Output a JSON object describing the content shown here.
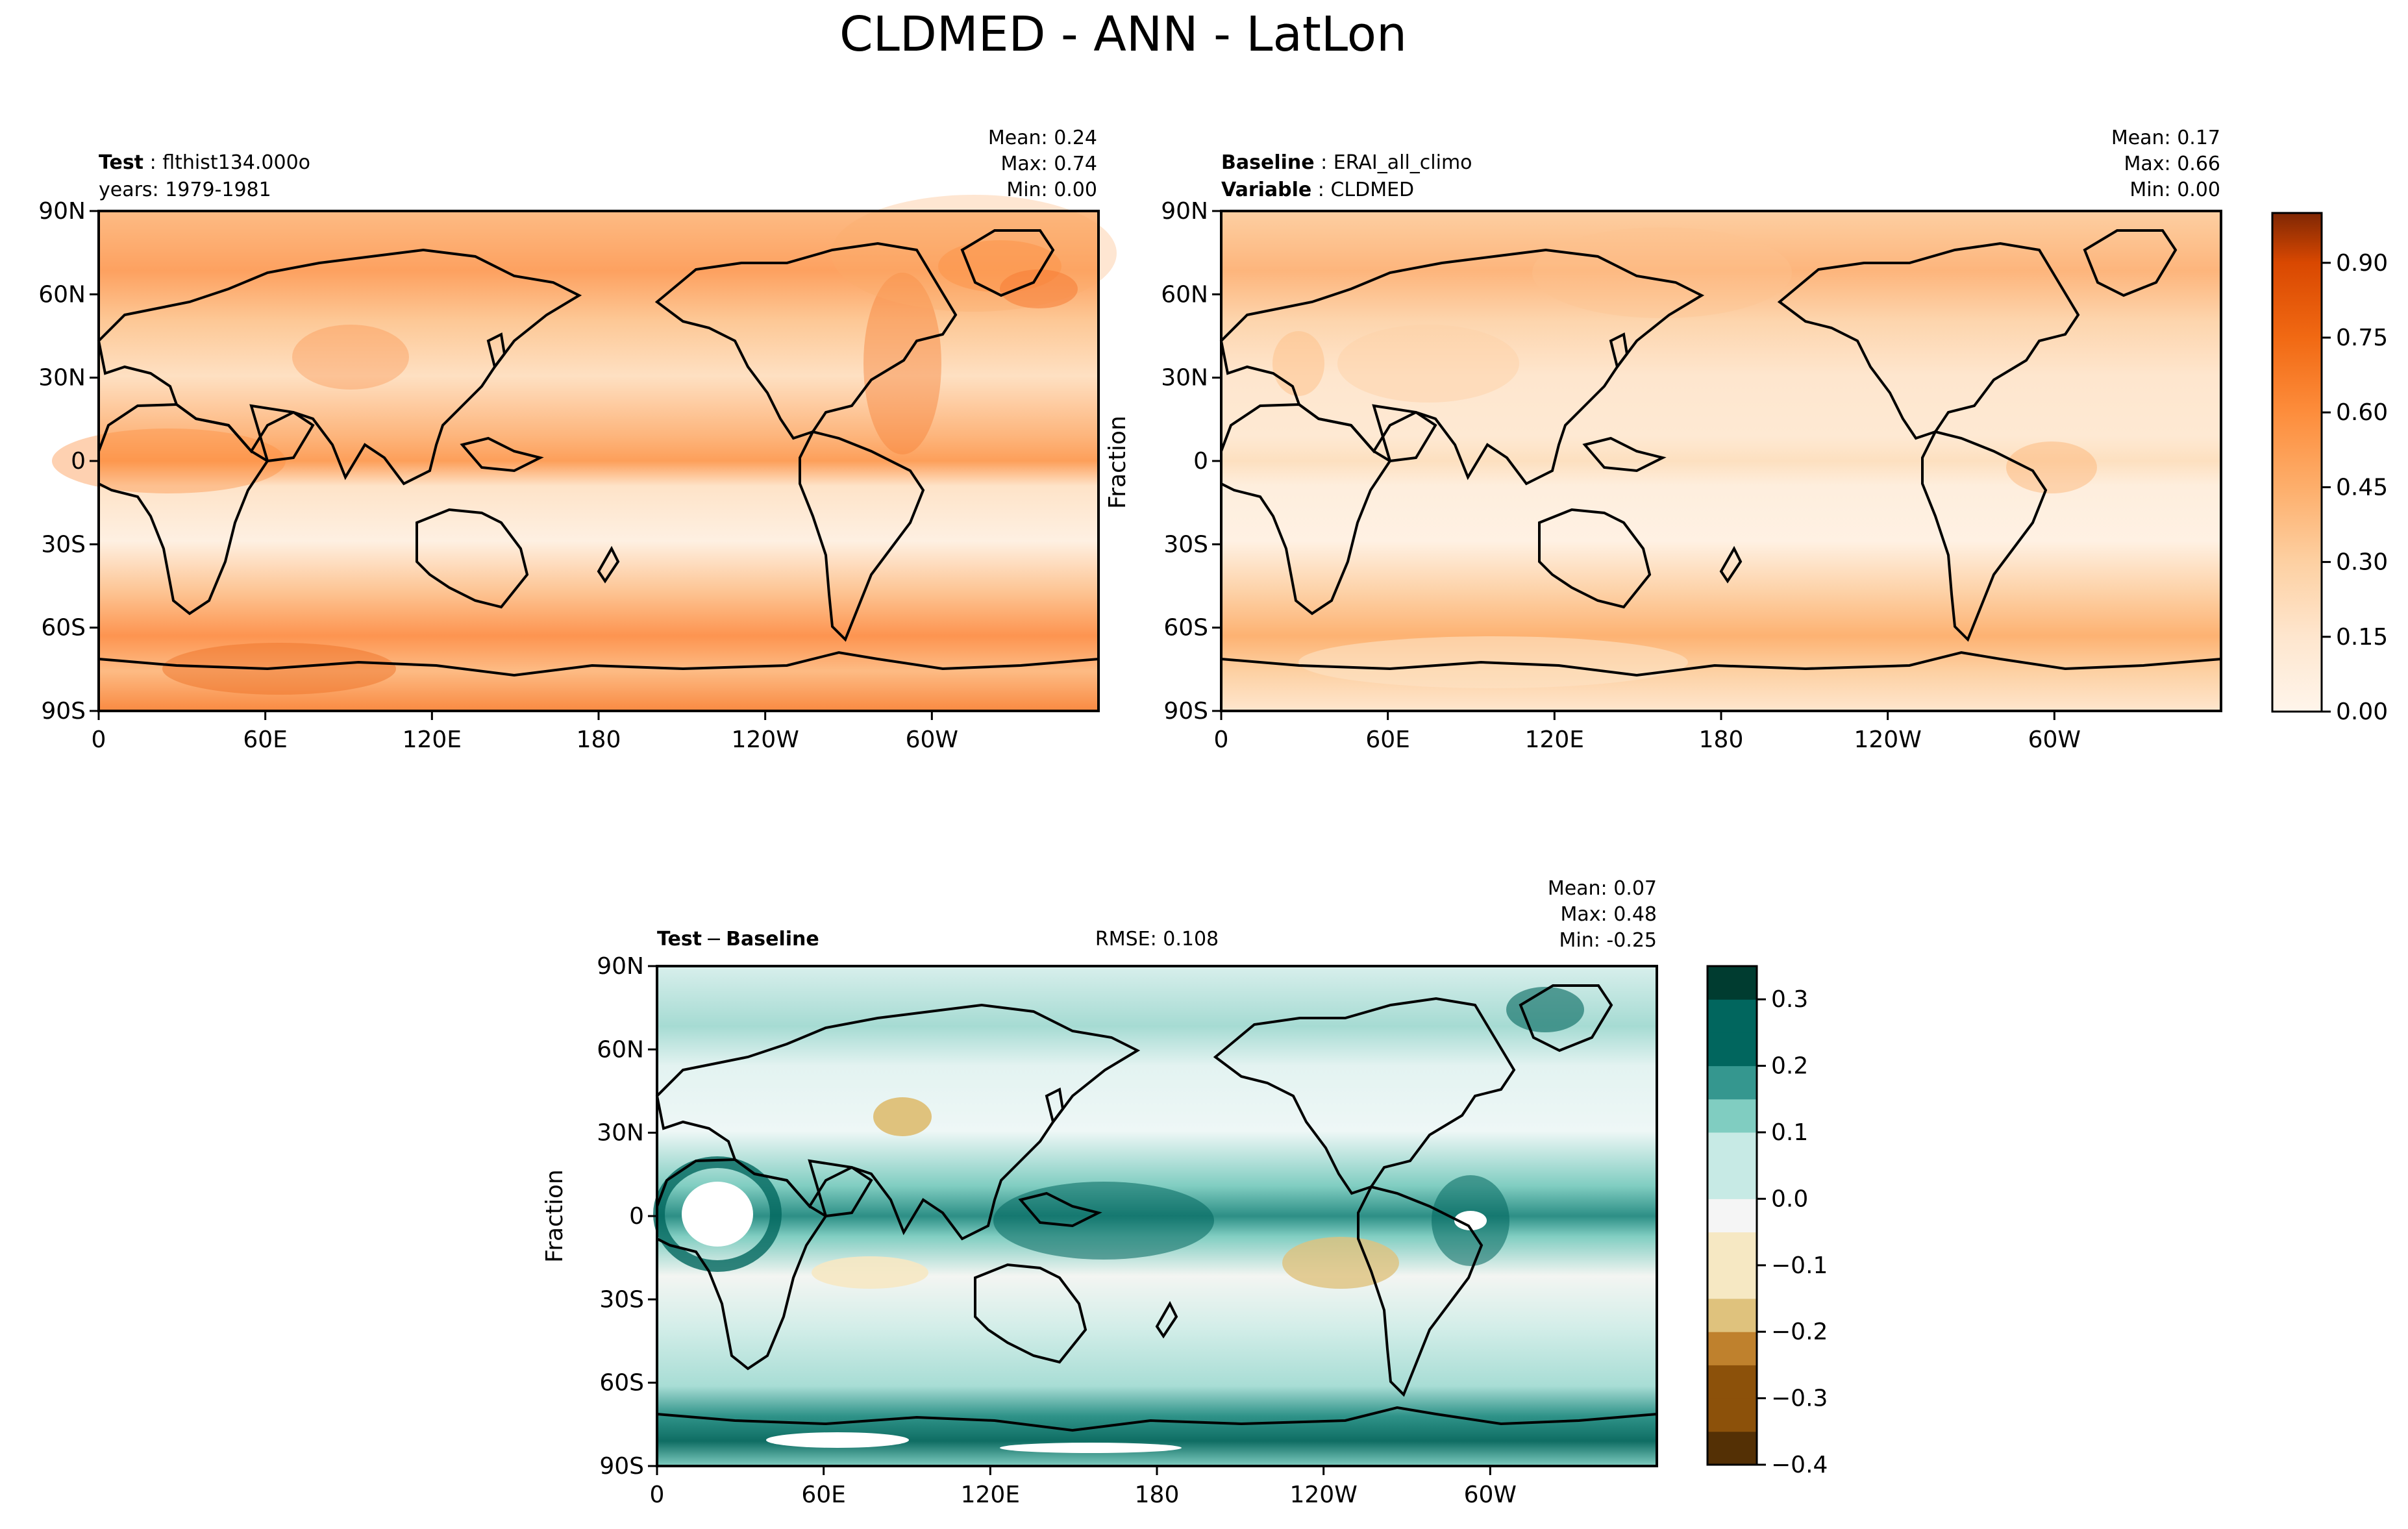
{
  "figure_title": "CLDMED - ANN - LatLon",
  "colors": {
    "oranges": [
      "#fff5eb",
      "#fee6ce",
      "#fdd0a2",
      "#fdae6b",
      "#fd8d3c",
      "#f16913",
      "#d94801",
      "#a63603",
      "#7f2704"
    ],
    "diff": [
      "#543005",
      "#8c510a",
      "#bf812d",
      "#dfc27d",
      "#f6e8c3",
      "#f5f5f5",
      "#c7eae5",
      "#80cdc1",
      "#35978f",
      "#01665e",
      "#003c30"
    ],
    "coast": "#000000"
  },
  "chart_data": [
    {
      "type": "heatmap",
      "name": "test-panel",
      "label_bold": "Test",
      "label_text": "flthist134.000o",
      "label_line2": "years: 1979-1981",
      "stats": {
        "mean": "Mean:  0.24",
        "max": "Max:  0.74",
        "min": "Min:  0.00"
      },
      "ylabel": "",
      "xticks": [
        "0",
        "60E",
        "120E",
        "180",
        "120W",
        "60W"
      ],
      "yticks": [
        "90N",
        "60N",
        "30N",
        "0",
        "30S",
        "60S",
        "90S"
      ],
      "xlim": [
        0,
        360
      ],
      "ylim": [
        -90,
        90
      ],
      "zlim": [
        0,
        1.0
      ],
      "field": "test_cldmed_fraction"
    },
    {
      "type": "heatmap",
      "name": "baseline-panel",
      "label_bold": "Baseline",
      "label_text": "ERAI_all_climo",
      "label_bold2": "Variable",
      "label_text2": "CLDMED",
      "stats": {
        "mean": "Mean:  0.17",
        "max": "Max:  0.66",
        "min": "Min:  0.00"
      },
      "ylabel": "Fraction",
      "xticks": [
        "0",
        "60E",
        "120E",
        "180",
        "120W",
        "60W"
      ],
      "yticks": [
        "90N",
        "60N",
        "30N",
        "0",
        "30S",
        "60S",
        "90S"
      ],
      "xlim": [
        0,
        360
      ],
      "ylim": [
        -90,
        90
      ],
      "zlim": [
        0,
        1.0
      ],
      "colorbar_ticks": [
        "0.00",
        "0.15",
        "0.30",
        "0.45",
        "0.60",
        "0.75",
        "0.90"
      ],
      "colorbar_values": [
        0.0,
        0.15,
        0.3,
        0.45,
        0.6,
        0.75,
        0.9
      ],
      "field": "baseline_cldmed_fraction"
    },
    {
      "type": "heatmap",
      "name": "diff-panel",
      "label_bold": "Test",
      "label_minus": "−",
      "label_bold2": "Baseline",
      "rmse": "RMSE: 0.108",
      "stats": {
        "mean": "Mean:  0.07",
        "max": "Max:  0.48",
        "min": "Min: -0.25"
      },
      "ylabel": "Fraction",
      "xticks": [
        "0",
        "60E",
        "120E",
        "180",
        "120W",
        "60W"
      ],
      "yticks": [
        "90N",
        "60N",
        "30N",
        "0",
        "30S",
        "60S",
        "90S"
      ],
      "xlim": [
        0,
        360
      ],
      "ylim": [
        -90,
        90
      ],
      "zlim": [
        -0.4,
        0.35
      ],
      "colorbar_ticks": [
        "0.3",
        "0.2",
        "0.1",
        "0.0",
        "−0.1",
        "−0.2",
        "−0.3",
        "−0.4"
      ],
      "colorbar_values": [
        0.3,
        0.2,
        0.1,
        0.0,
        -0.1,
        -0.2,
        -0.3,
        -0.4
      ],
      "field": "test_minus_baseline"
    }
  ]
}
